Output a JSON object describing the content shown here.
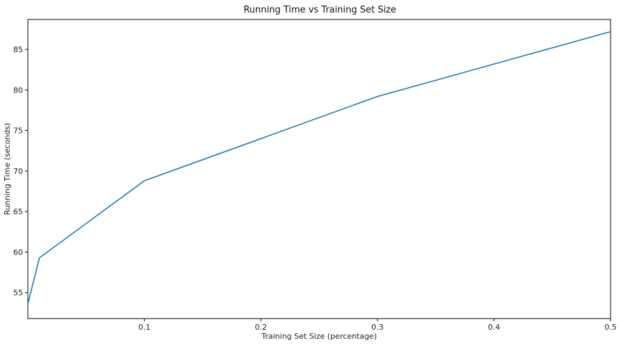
{
  "chart_data": {
    "type": "line",
    "title": "Running Time vs Training Set Size",
    "xlabel": "Training Set Size (percentage)",
    "ylabel": "Running Time (seconds)",
    "xlim": [
      0.0,
      0.5
    ],
    "ylim": [
      51.8,
      88.7
    ],
    "x_ticks": [
      0.1,
      0.2,
      0.3,
      0.4,
      0.5
    ],
    "x_tick_labels": [
      "0.1",
      "0.2",
      "0.3",
      "0.4",
      "0.5"
    ],
    "y_ticks": [
      55,
      60,
      65,
      70,
      75,
      80,
      85
    ],
    "y_tick_labels": [
      "55",
      "60",
      "65",
      "70",
      "75",
      "80",
      "85"
    ],
    "grid": false,
    "legend": "none",
    "series": [
      {
        "color": "#1f77b4",
        "x": [
          0.0,
          0.01,
          0.1,
          0.3,
          0.5
        ],
        "y": [
          53.6,
          59.3,
          68.8,
          79.2,
          87.2
        ]
      }
    ]
  }
}
